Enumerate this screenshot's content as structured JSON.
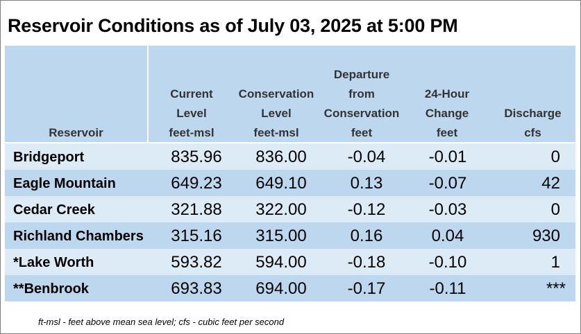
{
  "title": "Reservoir Conditions as of July 03, 2025 at 5:00 PM",
  "headers": {
    "reservoir": [
      "Reservoir"
    ],
    "current": [
      "Current",
      "Level",
      "feet-msl"
    ],
    "conservation": [
      "Conservation",
      "Level",
      "feet-msl"
    ],
    "departure": [
      "Departure",
      "from",
      "Conservation",
      "feet"
    ],
    "change": [
      "24-Hour",
      "Change",
      "feet"
    ],
    "discharge": [
      "Discharge",
      "cfs"
    ]
  },
  "rows": [
    {
      "name": "Bridgeport",
      "current": "835.96",
      "conservation": "836.00",
      "departure": "-0.04",
      "change": "-0.01",
      "discharge": "0"
    },
    {
      "name": "Eagle Mountain",
      "current": "649.23",
      "conservation": "649.10",
      "departure": "0.13",
      "change": "-0.07",
      "discharge": "42"
    },
    {
      "name": "Cedar Creek",
      "current": "321.88",
      "conservation": "322.00",
      "departure": "-0.12",
      "change": "-0.03",
      "discharge": "0"
    },
    {
      "name": "Richland Chambers",
      "current": "315.16",
      "conservation": "315.00",
      "departure": "0.16",
      "change": "0.04",
      "discharge": "930"
    },
    {
      "name": "*Lake Worth",
      "current": "593.82",
      "conservation": "594.00",
      "departure": "-0.18",
      "change": "-0.10",
      "discharge": "1"
    },
    {
      "name": "**Benbrook",
      "current": "693.83",
      "conservation": "694.00",
      "departure": "-0.17",
      "change": "-0.11",
      "discharge": "***"
    }
  ],
  "footnote": "ft-msl - feet above mean sea level; cfs - cubic feet per second",
  "colors": {
    "header_bg": "#bdd7ee",
    "row_light": "#ddebf7",
    "row_dark": "#bdd7ee"
  }
}
